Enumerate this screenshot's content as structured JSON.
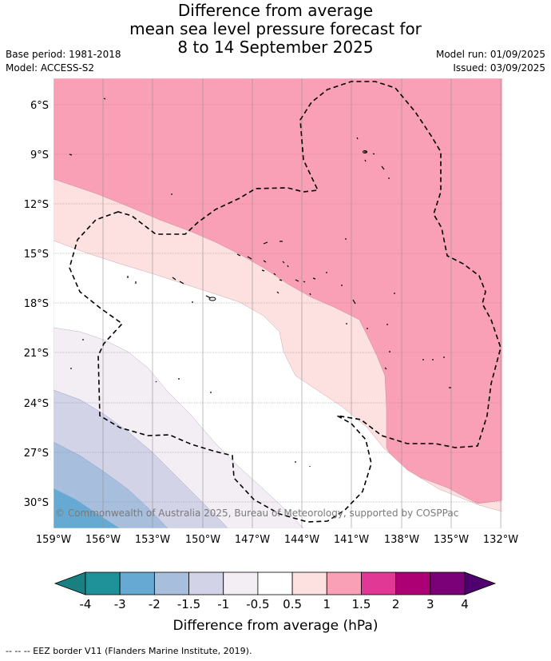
{
  "title": {
    "line1": "Difference from average",
    "line2": "mean sea level pressure forecast for",
    "line3": "8 to 14 September 2025"
  },
  "meta": {
    "base_period": "Base period: 1981-2018",
    "model": "Model: ACCESS-S2",
    "model_run": "Model run: 01/09/2025",
    "issued": "Issued: 03/09/2025"
  },
  "map": {
    "lat_labels": [
      "6°S",
      "9°S",
      "12°S",
      "15°S",
      "18°S",
      "21°S",
      "24°S",
      "27°S",
      "30°S"
    ],
    "lon_labels": [
      "159°W",
      "156°W",
      "153°W",
      "150°W",
      "147°W",
      "144°W",
      "141°W",
      "138°W",
      "135°W",
      "132°W"
    ],
    "copyright": "© Commonwealth of Australia 2025, Bureau of Meteorology, supported by COSPPac"
  },
  "colorbar": {
    "labels": [
      "-4",
      "-3",
      "-2",
      "-1.5",
      "-1",
      "-0.5",
      "0.5",
      "1",
      "1.5",
      "2",
      "3",
      "4"
    ],
    "colors": [
      "#1a7f80",
      "#1f9299",
      "#66aad3",
      "#a7bedd",
      "#d2d3e7",
      "#f2eef4",
      "#ffffff",
      "#fde0e0",
      "#f9a0b6",
      "#e13795",
      "#ad0074",
      "#7a0177",
      "#50006e"
    ],
    "title": "Difference from average (hPa)"
  },
  "footer": "--  --  -- EEZ border V11 (Flanders Marine Institute, 2019)."
}
